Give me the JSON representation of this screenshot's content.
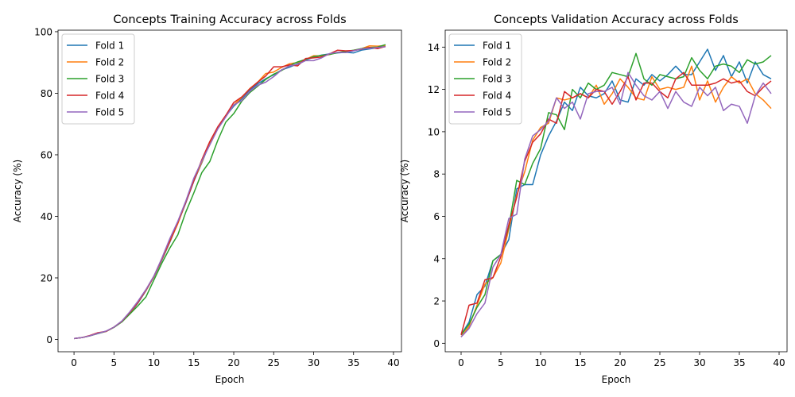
{
  "chart_data": [
    {
      "type": "line",
      "title": "Concepts Training Accuracy across Folds",
      "xlabel": "Epoch",
      "ylabel": "Accuracy (%)",
      "xlim": [
        -2,
        41
      ],
      "ylim": [
        -4,
        100.5
      ],
      "xticks": [
        0,
        5,
        10,
        15,
        20,
        25,
        30,
        35,
        40
      ],
      "yticks": [
        0,
        20,
        40,
        60,
        80,
        100
      ],
      "grid": false,
      "legend_position": "upper-left",
      "x": [
        0,
        1,
        2,
        3,
        4,
        5,
        6,
        7,
        8,
        9,
        10,
        11,
        12,
        13,
        14,
        15,
        16,
        17,
        18,
        19,
        20,
        21,
        22,
        23,
        24,
        25,
        26,
        27,
        28,
        29,
        30,
        31,
        32,
        33,
        34,
        35,
        36,
        37,
        38,
        39
      ],
      "series": [
        {
          "name": "Fold 1",
          "color": "#1f77b4",
          "values": [
            0.3,
            0.6,
            1.2,
            1.9,
            2.6,
            4.0,
            5.8,
            8.4,
            11.8,
            15.8,
            20.3,
            25.8,
            31.6,
            37.8,
            44.4,
            51.4,
            57.4,
            63.8,
            68.9,
            72.6,
            75.8,
            78.2,
            80.9,
            83.1,
            84.7,
            86.0,
            87.6,
            88.5,
            89.6,
            90.8,
            91.7,
            92.4,
            92.8,
            93.1,
            93.3,
            93.1,
            94.0,
            94.4,
            94.8,
            95.4
          ]
        },
        {
          "name": "Fold 2",
          "color": "#ff7f0e",
          "values": [
            0.3,
            0.6,
            1.2,
            2.0,
            2.6,
            4.0,
            5.9,
            8.6,
            12.0,
            15.9,
            20.4,
            26.0,
            31.8,
            37.6,
            44.7,
            51.6,
            57.6,
            64.0,
            69.0,
            72.8,
            76.2,
            78.6,
            81.5,
            83.6,
            86.4,
            86.9,
            88.4,
            89.6,
            90.0,
            91.0,
            92.2,
            92.1,
            92.6,
            93.3,
            93.5,
            93.9,
            94.5,
            95.4,
            95.3,
            95.5
          ]
        },
        {
          "name": "Fold 3",
          "color": "#2ca02c",
          "values": [
            0.3,
            0.6,
            1.2,
            2.0,
            2.6,
            3.9,
            5.7,
            8.3,
            10.9,
            13.8,
            19.3,
            24.8,
            29.7,
            34.0,
            41.4,
            47.6,
            54.2,
            57.8,
            64.7,
            70.6,
            73.4,
            77.4,
            80.2,
            82.3,
            84.5,
            86.2,
            87.4,
            89.0,
            90.2,
            91.0,
            91.9,
            92.3,
            92.6,
            93.2,
            93.6,
            94.0,
            94.5,
            94.9,
            95.0,
            95.8
          ]
        },
        {
          "name": "Fold 4",
          "color": "#d62728",
          "values": [
            0.3,
            0.6,
            1.3,
            2.2,
            2.6,
            4.0,
            5.9,
            8.8,
            12.0,
            16.0,
            20.5,
            26.1,
            32.0,
            38.0,
            44.6,
            51.5,
            58.4,
            64.3,
            69.1,
            72.8,
            77.0,
            78.8,
            81.4,
            83.6,
            85.6,
            88.6,
            88.6,
            89.2,
            88.9,
            91.3,
            91.5,
            91.8,
            92.8,
            94.0,
            93.8,
            93.9,
            94.3,
            94.9,
            94.5,
            95.2
          ]
        },
        {
          "name": "Fold 5",
          "color": "#9467bd",
          "values": [
            0.3,
            0.6,
            1.2,
            2.0,
            2.7,
            4.0,
            6.0,
            9.0,
            12.4,
            16.2,
            20.6,
            26.4,
            32.8,
            38.4,
            45.0,
            52.4,
            58.0,
            63.2,
            68.4,
            72.3,
            76.2,
            77.6,
            80.6,
            82.6,
            83.6,
            85.4,
            87.6,
            88.9,
            89.4,
            90.6,
            90.6,
            91.5,
            92.9,
            93.3,
            93.2,
            93.8,
            94.4,
            94.6,
            94.9,
            95.1
          ]
        }
      ]
    },
    {
      "type": "line",
      "title": "Concepts Validation Accuracy across Folds",
      "xlabel": "Epoch",
      "ylabel": "Accuracy (%)",
      "xlim": [
        -2,
        41
      ],
      "ylim": [
        -0.4,
        14.8
      ],
      "xticks": [
        0,
        5,
        10,
        15,
        20,
        25,
        30,
        35,
        40
      ],
      "yticks": [
        0,
        2,
        4,
        6,
        8,
        10,
        12,
        14
      ],
      "grid": false,
      "legend_position": "upper-left",
      "x": [
        0,
        1,
        2,
        3,
        4,
        5,
        6,
        7,
        8,
        9,
        10,
        11,
        12,
        13,
        14,
        15,
        16,
        17,
        18,
        19,
        20,
        21,
        22,
        23,
        24,
        25,
        26,
        27,
        28,
        29,
        30,
        31,
        32,
        33,
        34,
        35,
        36,
        37,
        38,
        39
      ],
      "series": [
        {
          "name": "Fold 1",
          "color": "#1f77b4",
          "values": [
            0.4,
            1.0,
            2.3,
            2.7,
            3.9,
            4.2,
            4.9,
            7.3,
            7.5,
            7.5,
            8.9,
            9.8,
            10.5,
            11.4,
            11.0,
            12.1,
            11.7,
            11.6,
            11.8,
            12.4,
            11.5,
            11.4,
            12.5,
            12.2,
            12.7,
            12.4,
            12.7,
            13.1,
            12.7,
            12.7,
            13.3,
            13.9,
            12.9,
            13.6,
            12.6,
            13.3,
            12.3,
            13.3,
            12.7,
            12.5
          ]
        },
        {
          "name": "Fold 2",
          "color": "#ff7f0e",
          "values": [
            0.3,
            0.8,
            1.8,
            2.8,
            3.1,
            3.8,
            5.4,
            7.0,
            8.1,
            9.6,
            10.2,
            10.4,
            11.6,
            11.5,
            11.6,
            11.8,
            11.6,
            12.2,
            11.3,
            11.8,
            12.5,
            12.1,
            11.6,
            11.5,
            12.6,
            12.0,
            12.1,
            12.0,
            12.1,
            13.1,
            11.5,
            12.4,
            11.4,
            12.1,
            12.6,
            12.3,
            12.5,
            11.8,
            11.5,
            11.1
          ]
        },
        {
          "name": "Fold 3",
          "color": "#2ca02c",
          "values": [
            0.4,
            0.9,
            1.7,
            2.3,
            3.9,
            4.2,
            5.5,
            7.7,
            7.5,
            8.5,
            9.2,
            10.9,
            10.8,
            10.1,
            12.0,
            11.6,
            12.3,
            12.0,
            12.2,
            12.8,
            12.7,
            12.6,
            13.7,
            12.5,
            12.2,
            12.7,
            12.6,
            12.5,
            12.6,
            13.5,
            12.9,
            12.5,
            13.1,
            13.2,
            13.1,
            12.8,
            13.4,
            13.2,
            13.3,
            13.6
          ]
        },
        {
          "name": "Fold 4",
          "color": "#d62728",
          "values": [
            0.4,
            1.8,
            1.9,
            3.0,
            3.1,
            4.1,
            5.6,
            6.9,
            8.6,
            9.5,
            9.9,
            10.6,
            10.4,
            11.9,
            11.6,
            11.8,
            11.6,
            12.0,
            11.9,
            11.3,
            11.9,
            12.6,
            11.5,
            12.3,
            12.3,
            11.9,
            11.6,
            12.5,
            12.8,
            12.2,
            12.2,
            12.2,
            12.3,
            12.5,
            12.3,
            12.4,
            11.9,
            11.7,
            12.1,
            12.4
          ]
        },
        {
          "name": "Fold 5",
          "color": "#9467bd",
          "values": [
            0.3,
            0.7,
            1.4,
            1.9,
            3.6,
            4.2,
            5.9,
            6.1,
            8.7,
            9.8,
            10.1,
            10.5,
            11.6,
            11.1,
            11.4,
            10.6,
            11.8,
            11.9,
            11.9,
            12.1,
            11.3,
            12.8,
            12.2,
            11.7,
            11.5,
            11.9,
            11.1,
            11.9,
            11.4,
            11.2,
            12.1,
            11.7,
            12.1,
            11.0,
            11.3,
            11.2,
            10.4,
            11.7,
            12.3,
            11.8
          ]
        }
      ]
    }
  ]
}
